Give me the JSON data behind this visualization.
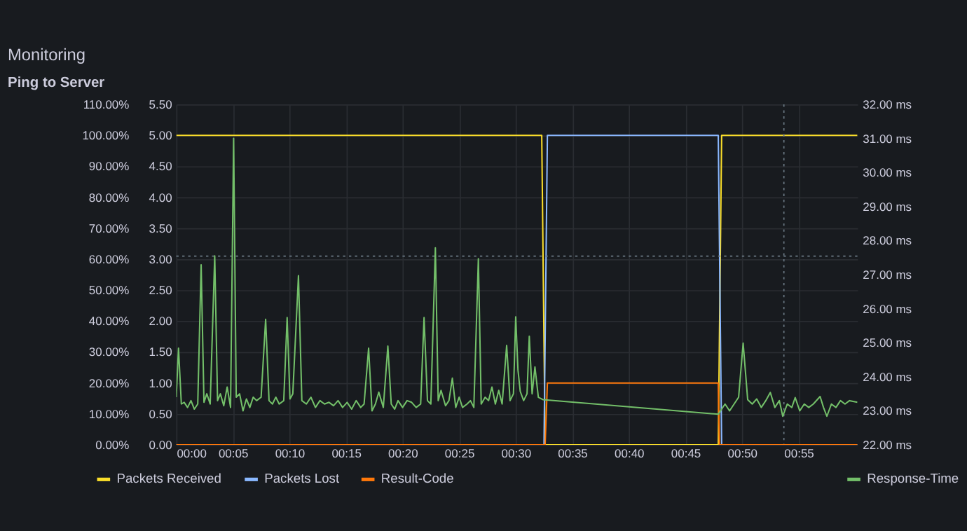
{
  "chart_data": {
    "type": "line",
    "title": "Monitoring",
    "subtitle": "Ping to Server",
    "xlim": [
      0,
      60.2
    ],
    "xticks": [
      {
        "value": 0,
        "label": "00:00"
      },
      {
        "value": 5,
        "label": "00:05"
      },
      {
        "value": 10,
        "label": "00:10"
      },
      {
        "value": 15,
        "label": "00:15"
      },
      {
        "value": 20,
        "label": "00:20"
      },
      {
        "value": 25,
        "label": "00:25"
      },
      {
        "value": 30,
        "label": "00:30"
      },
      {
        "value": 35,
        "label": "00:35"
      },
      {
        "value": 40,
        "label": "00:40"
      },
      {
        "value": 45,
        "label": "00:45"
      },
      {
        "value": 50,
        "label": "00:50"
      },
      {
        "value": 55,
        "label": "00:55"
      }
    ],
    "ylim": [
      0,
      110
    ],
    "yticks": [
      {
        "value": 0,
        "label": "0.00%"
      },
      {
        "value": 10,
        "label": "10.00%"
      },
      {
        "value": 20,
        "label": "20.00%"
      },
      {
        "value": 30,
        "label": "30.00%"
      },
      {
        "value": 40,
        "label": "40.00%"
      },
      {
        "value": 50,
        "label": "50.00%"
      },
      {
        "value": 60,
        "label": "60.00%"
      },
      {
        "value": 70,
        "label": "70.00%"
      },
      {
        "value": 80,
        "label": "80.00%"
      },
      {
        "value": 90,
        "label": "90.00%"
      },
      {
        "value": 100,
        "label": "100.00%"
      },
      {
        "value": 110,
        "label": "110.00%"
      }
    ],
    "y2lim": [
      0,
      5.5
    ],
    "y2ticks": [
      {
        "value": 0,
        "label": "0.00"
      },
      {
        "value": 0.5,
        "label": "0.50"
      },
      {
        "value": 1,
        "label": "1.00"
      },
      {
        "value": 1.5,
        "label": "1.50"
      },
      {
        "value": 2,
        "label": "2.00"
      },
      {
        "value": 2.5,
        "label": "2.50"
      },
      {
        "value": 3,
        "label": "3.00"
      },
      {
        "value": 3.5,
        "label": "3.50"
      },
      {
        "value": 4,
        "label": "4.00"
      },
      {
        "value": 4.5,
        "label": "4.50"
      },
      {
        "value": 5,
        "label": "5.00"
      },
      {
        "value": 5.5,
        "label": "5.50"
      }
    ],
    "y3lim": [
      22,
      32
    ],
    "y3ticks": [
      {
        "value": 22,
        "label": "22.00 ms"
      },
      {
        "value": 23,
        "label": "23.00 ms"
      },
      {
        "value": 24,
        "label": "24.00 ms"
      },
      {
        "value": 25,
        "label": "25.00 ms"
      },
      {
        "value": 26,
        "label": "26.00 ms"
      },
      {
        "value": 27,
        "label": "27.00 ms"
      },
      {
        "value": 28,
        "label": "28.00 ms"
      },
      {
        "value": 29,
        "label": "29.00 ms"
      },
      {
        "value": 30,
        "label": "30.00 ms"
      },
      {
        "value": 31,
        "label": "31.00 ms"
      },
      {
        "value": 32,
        "label": "32.00 ms"
      }
    ],
    "grid": true,
    "legend": "bottom",
    "series": [
      {
        "name": "Packets Received",
        "color": "#fade2a",
        "axis": "y",
        "x": [
          0,
          32.3,
          32.6,
          47.9,
          48.2,
          60.2
        ],
        "values": [
          100,
          100,
          0,
          0,
          100,
          100
        ]
      },
      {
        "name": "Packets Lost",
        "color": "#8ab8ff",
        "axis": "y",
        "x": [
          0,
          32.5,
          32.8,
          47.9,
          48.2,
          60.2
        ],
        "values": [
          0,
          0,
          100,
          100,
          0,
          0
        ]
      },
      {
        "name": "Result-Code",
        "color": "#ff780a",
        "axis": "y2",
        "x": [
          0,
          32.6,
          32.8,
          47.9,
          48.0,
          60.2
        ],
        "values": [
          0,
          0,
          1,
          1,
          0,
          0
        ]
      },
      {
        "name": "Response-Time",
        "color": "#73bf69",
        "axis": "y3",
        "x": [
          0,
          0.2,
          0.45,
          0.7,
          1.0,
          1.3,
          1.6,
          1.9,
          2.2,
          2.45,
          2.7,
          3.0,
          3.4,
          3.65,
          3.9,
          4.2,
          4.5,
          4.8,
          5.07,
          5.3,
          5.6,
          5.9,
          6.2,
          6.5,
          6.8,
          7.1,
          7.5,
          7.9,
          8.2,
          8.5,
          8.8,
          9.1,
          9.5,
          9.8,
          10.05,
          10.3,
          10.8,
          11.1,
          11.5,
          11.9,
          12.3,
          12.7,
          13.1,
          13.5,
          13.9,
          14.3,
          14.7,
          15.1,
          15.5,
          15.9,
          16.3,
          16.6,
          17.0,
          17.3,
          17.6,
          17.9,
          18.3,
          18.7,
          19.0,
          19.3,
          19.6,
          20.0,
          20.4,
          20.8,
          21.2,
          21.6,
          21.9,
          22.2,
          22.5,
          22.9,
          23.15,
          23.4,
          23.8,
          24.1,
          24.4,
          24.7,
          25.0,
          25.3,
          25.7,
          26.0,
          26.3,
          26.7,
          26.95,
          27.3,
          27.6,
          27.9,
          28.2,
          28.5,
          28.8,
          29.2,
          29.5,
          29.8,
          30.0,
          30.2,
          30.4,
          30.7,
          31.0,
          31.2,
          31.45,
          31.7,
          32.0,
          32.4,
          47.9,
          48.2,
          48.5,
          48.9,
          49.3,
          49.7,
          50.1,
          50.5,
          50.9,
          51.3,
          51.7,
          52.1,
          52.5,
          52.9,
          53.3,
          53.6,
          54.0,
          54.4,
          54.7,
          55.1,
          55.5,
          55.9,
          56.3,
          56.9,
          57.2,
          57.5,
          57.9,
          58.3,
          58.7,
          59.1,
          59.5,
          60.2
        ],
        "values": [
          23.4,
          24.84,
          23.2,
          23.25,
          23.1,
          23.3,
          23.05,
          23.2,
          27.29,
          23.25,
          23.5,
          23.2,
          27.55,
          23.3,
          23.5,
          23.15,
          23.7,
          23.1,
          31.0,
          23.4,
          23.5,
          23.0,
          23.35,
          23.1,
          23.4,
          23.3,
          23.4,
          25.69,
          23.3,
          23.2,
          23.4,
          23.2,
          23.3,
          25.74,
          23.35,
          23.5,
          26.97,
          23.3,
          23.2,
          23.4,
          23.1,
          23.3,
          23.2,
          23.25,
          23.15,
          23.3,
          23.1,
          23.25,
          23.05,
          23.3,
          23.1,
          23.2,
          24.84,
          23.0,
          23.2,
          23.55,
          23.1,
          24.9,
          23.2,
          23.05,
          23.3,
          23.1,
          23.3,
          23.25,
          23.1,
          23.2,
          25.74,
          23.3,
          23.2,
          27.79,
          23.3,
          23.6,
          23.15,
          23.3,
          23.96,
          23.1,
          23.4,
          23.1,
          23.2,
          23.3,
          23.1,
          27.47,
          23.2,
          23.4,
          23.3,
          23.7,
          23.2,
          23.6,
          23.2,
          24.92,
          23.3,
          23.5,
          25.76,
          24.2,
          23.57,
          23.3,
          23.5,
          25.19,
          23.5,
          24.29,
          23.4,
          23.33,
          22.9,
          23.05,
          23.2,
          23.0,
          23.2,
          23.4,
          24.99,
          23.33,
          23.2,
          23.35,
          23.1,
          23.3,
          23.54,
          23.1,
          23.3,
          22.84,
          23.2,
          23.1,
          23.39,
          23.0,
          23.2,
          23.1,
          23.2,
          23.42,
          23.1,
          22.84,
          23.2,
          23.1,
          23.3,
          23.2,
          23.3,
          23.25
        ]
      }
    ],
    "ref_lines": [
      {
        "axis": "y2",
        "value": 3.05,
        "label": null,
        "color": "#6b7a85",
        "line_style": "dotted"
      },
      {
        "axis": "x",
        "value": 53.7,
        "label": null,
        "color": "#6b7a85",
        "line_style": "dotted"
      }
    ]
  }
}
